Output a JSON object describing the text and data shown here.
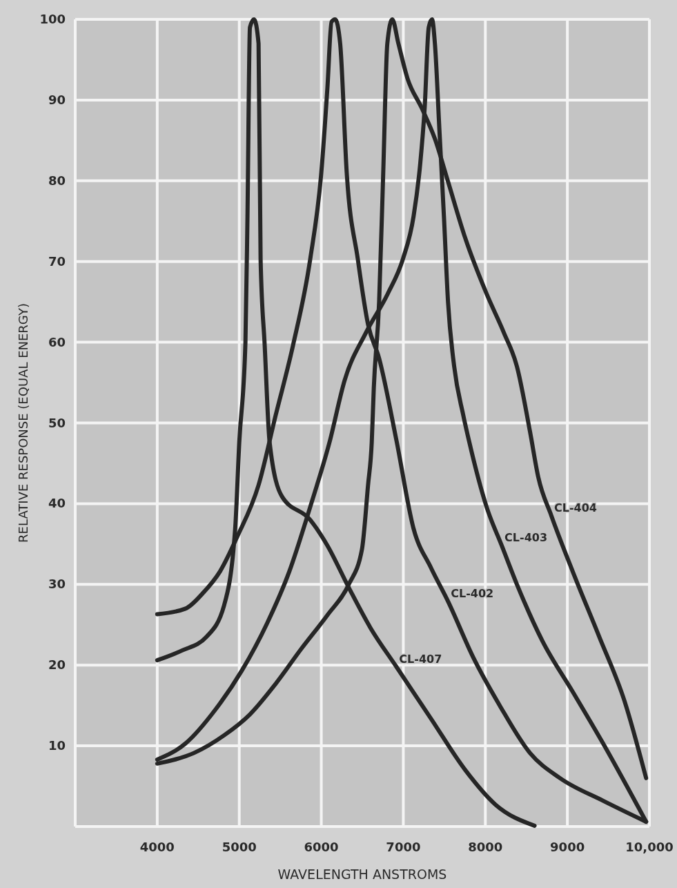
{
  "chart_data": {
    "type": "line",
    "xlabel": "WAVELENGTH ANSTROMS",
    "ylabel": "RELATIVE RESPONSE (EQUAL ENERGY)",
    "xlim": [
      3000,
      10000
    ],
    "ylim": [
      0,
      100
    ],
    "xticks": [
      {
        "value": 3000,
        "label": null
      },
      4000,
      5000,
      6000,
      7000,
      8000,
      9000,
      {
        "value": 10000,
        "label": "10,000"
      }
    ],
    "yticks": [
      {
        "value": 0,
        "label": null
      },
      10,
      20,
      30,
      40,
      50,
      60,
      70,
      80,
      90,
      100
    ],
    "grid": true,
    "marker": "none",
    "line_style": "solid",
    "series": [
      {
        "color": "#262626",
        "x": [
          4000,
          4345,
          4555,
          4765,
          4975,
          5235,
          5445,
          5655,
          5865,
          6000,
          6075,
          6125,
          6170,
          6230,
          6310,
          6445,
          6570,
          6705,
          6915,
          7125,
          7335,
          7545,
          7855,
          8175,
          8545,
          8910,
          9435,
          9960
        ],
        "values": [
          26.3,
          27,
          28.9,
          31.6,
          35.9,
          42.3,
          51,
          59.6,
          70.3,
          81,
          91.6,
          99.7,
          100,
          97,
          81,
          70.3,
          62.2,
          58,
          47.9,
          36.9,
          32.1,
          27.9,
          20.9,
          15,
          9.1,
          6,
          3.2,
          0.6
        ]
      },
      {
        "color": "#262626",
        "x": [
          4000,
          4345,
          4710,
          5030,
          5340,
          5610,
          5865,
          6100,
          6285,
          6545,
          6810,
          6995,
          7125,
          7205,
          7260,
          7310,
          7350,
          7385,
          7440,
          7495,
          7545,
          7620,
          7730,
          7805,
          8015,
          8200,
          8385,
          8695,
          9065,
          9435,
          9960
        ],
        "values": [
          8.3,
          10.3,
          14.5,
          19.3,
          25.2,
          31.6,
          39.6,
          47.6,
          55.3,
          61.2,
          66,
          70.3,
          75.6,
          82,
          89,
          99,
          100,
          97,
          86.3,
          75.6,
          65,
          57,
          51,
          47.6,
          39.6,
          34.8,
          30,
          23,
          16.7,
          10.3,
          0.6
        ]
      },
      {
        "color": "#262626",
        "x": [
          4000,
          4445,
          4815,
          5130,
          5445,
          5755,
          6075,
          6335,
          6495,
          6570,
          6615,
          6640,
          6705,
          6755,
          6805,
          6865,
          6940,
          7050,
          7225,
          7385,
          7545,
          7755,
          8015,
          8225,
          8385,
          8545,
          8645,
          8805,
          9065,
          9385,
          9695,
          9960
        ],
        "values": [
          7.8,
          9.1,
          11.3,
          13.9,
          17.7,
          22,
          26.2,
          30,
          34.3,
          42.3,
          47.6,
          54.3,
          65,
          81,
          97,
          100,
          97,
          92.7,
          89,
          85.2,
          79.9,
          72.9,
          66,
          61.2,
          57,
          48.9,
          43.3,
          38.5,
          31.6,
          23.6,
          15.6,
          6
        ]
      },
      {
        "color": "#262626",
        "x": [
          4000,
          4300,
          4600,
          4815,
          4950,
          5000,
          5075,
          5100,
          5130,
          5180,
          5235,
          5260,
          5310,
          5370,
          5520,
          5865,
          6075,
          6340,
          6600,
          6915,
          7335,
          7755,
          8125,
          8600
        ],
        "values": [
          20.6,
          21.8,
          23.5,
          27.4,
          36.9,
          47.6,
          60,
          75.6,
          99,
          100,
          97,
          70.3,
          59.6,
          47.6,
          40.9,
          38,
          34.8,
          29.5,
          24.6,
          19.8,
          13.4,
          7,
          2.7,
          0.1
        ]
      }
    ],
    "annotations": [
      {
        "text": "CL-404",
        "x": 8805,
        "y": 38.5
      },
      {
        "text": "CL-403",
        "x": 8200,
        "y": 34.8
      },
      {
        "text": "CL-402",
        "x": 7545,
        "y": 27.9
      },
      {
        "text": "CL-407",
        "x": 6915,
        "y": 19.8
      }
    ]
  }
}
